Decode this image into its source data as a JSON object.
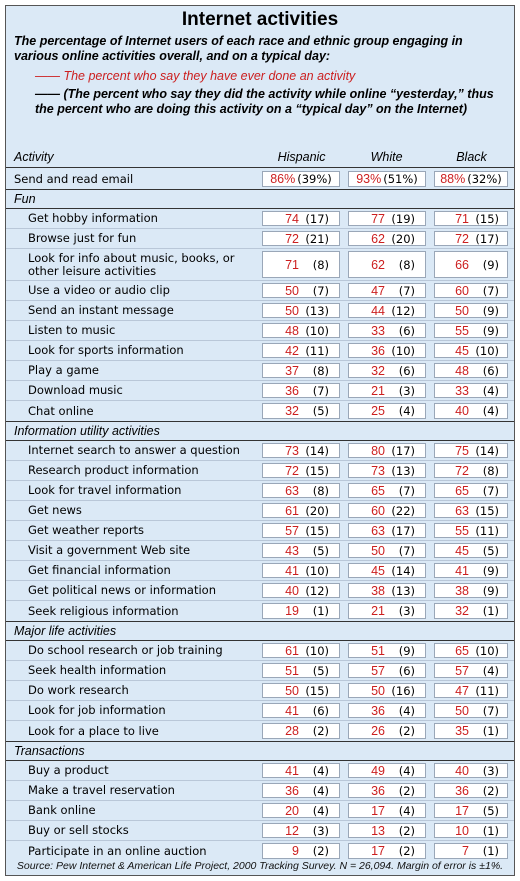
{
  "title": "Internet activities",
  "subtitle": "The percentage of Internet users of each race and ethnic group engaging in various online activities overall, and on a typical day:",
  "legend": {
    "red_line": "—— The percent who say they have ever done an activity",
    "black_line": "—— (The percent who say they did the activity while online “yesterday,” thus the percent who are doing this activity on a “typical day” on the Internet)"
  },
  "columns": {
    "activity": "Activity",
    "hispanic": "Hispanic",
    "white": "White",
    "black": "Black"
  },
  "top_row": {
    "name": "Send and read email",
    "hispanic": [
      "86%",
      "(39%)"
    ],
    "white": [
      "93%",
      "(51%)"
    ],
    "black": [
      "88%",
      "(32%)"
    ]
  },
  "sections": [
    {
      "title": "Fun",
      "rows": [
        {
          "name": "Get hobby information",
          "h": [
            "74",
            "(17)"
          ],
          "w": [
            "77",
            "(19)"
          ],
          "b": [
            "71",
            "(15)"
          ]
        },
        {
          "name": "Browse just for fun",
          "h": [
            "72",
            "(21)"
          ],
          "w": [
            "62",
            "(20)"
          ],
          "b": [
            "72",
            "(17)"
          ]
        },
        {
          "name": "Look for info about music, books, or other leisure activities",
          "tall": true,
          "h": [
            "71",
            "(8)"
          ],
          "w": [
            "62",
            "(8)"
          ],
          "b": [
            "66",
            "(9)"
          ]
        },
        {
          "name": "Use a video or audio clip",
          "h": [
            "50",
            "(7)"
          ],
          "w": [
            "47",
            "(7)"
          ],
          "b": [
            "60",
            "(7)"
          ]
        },
        {
          "name": "Send an instant message",
          "h": [
            "50",
            "(13)"
          ],
          "w": [
            "44",
            "(12)"
          ],
          "b": [
            "50",
            "(9)"
          ]
        },
        {
          "name": "Listen to music",
          "h": [
            "48",
            "(10)"
          ],
          "w": [
            "33",
            "(6)"
          ],
          "b": [
            "55",
            "(9)"
          ]
        },
        {
          "name": "Look for sports information",
          "h": [
            "42",
            "(11)"
          ],
          "w": [
            "36",
            "(10)"
          ],
          "b": [
            "45",
            "(10)"
          ]
        },
        {
          "name": "Play a game",
          "h": [
            "37",
            "(8)"
          ],
          "w": [
            "32",
            "(6)"
          ],
          "b": [
            "48",
            "(6)"
          ]
        },
        {
          "name": "Download music",
          "h": [
            "36",
            "(7)"
          ],
          "w": [
            "21",
            "(3)"
          ],
          "b": [
            "33",
            "(4)"
          ]
        },
        {
          "name": "Chat online",
          "h": [
            "32",
            "(5)"
          ],
          "w": [
            "25",
            "(4)"
          ],
          "b": [
            "40",
            "(4)"
          ]
        }
      ]
    },
    {
      "title": "Information utility activities",
      "rows": [
        {
          "name": "Internet search to answer a question",
          "h": [
            "73",
            "(14)"
          ],
          "w": [
            "80",
            "(17)"
          ],
          "b": [
            "75",
            "(14)"
          ]
        },
        {
          "name": "Research product information",
          "h": [
            "72",
            "(15)"
          ],
          "w": [
            "73",
            "(13)"
          ],
          "b": [
            "72",
            "(8)"
          ]
        },
        {
          "name": "Look for travel information",
          "h": [
            "63",
            "(8)"
          ],
          "w": [
            "65",
            "(7)"
          ],
          "b": [
            "65",
            "(7)"
          ]
        },
        {
          "name": "Get news",
          "h": [
            "61",
            "(20)"
          ],
          "w": [
            "60",
            "(22)"
          ],
          "b": [
            "63",
            "(15)"
          ]
        },
        {
          "name": "Get weather reports",
          "h": [
            "57",
            "(15)"
          ],
          "w": [
            "63",
            "(17)"
          ],
          "b": [
            "55",
            "(11)"
          ]
        },
        {
          "name": "Visit a government Web site",
          "h": [
            "43",
            "(5)"
          ],
          "w": [
            "50",
            "(7)"
          ],
          "b": [
            "45",
            "(5)"
          ]
        },
        {
          "name": "Get financial information",
          "h": [
            "41",
            "(10)"
          ],
          "w": [
            "45",
            "(14)"
          ],
          "b": [
            "41",
            "(9)"
          ]
        },
        {
          "name": "Get political news or information",
          "h": [
            "40",
            "(12)"
          ],
          "w": [
            "38",
            "(13)"
          ],
          "b": [
            "38",
            "(9)"
          ]
        },
        {
          "name": "Seek religious information",
          "h": [
            "19",
            "(1)"
          ],
          "w": [
            "21",
            "(3)"
          ],
          "b": [
            "32",
            "(1)"
          ]
        }
      ]
    },
    {
      "title": "Major life activities",
      "rows": [
        {
          "name": "Do school research or job training",
          "h": [
            "61",
            "(10)"
          ],
          "w": [
            "51",
            "(9)"
          ],
          "b": [
            "65",
            "(10)"
          ]
        },
        {
          "name": "Seek health information",
          "h": [
            "51",
            "(5)"
          ],
          "w": [
            "57",
            "(6)"
          ],
          "b": [
            "57",
            "(4)"
          ]
        },
        {
          "name": "Do work research",
          "h": [
            "50",
            "(15)"
          ],
          "w": [
            "50",
            "(16)"
          ],
          "b": [
            "47",
            "(11)"
          ]
        },
        {
          "name": "Look for job information",
          "h": [
            "41",
            "(6)"
          ],
          "w": [
            "36",
            "(4)"
          ],
          "b": [
            "50",
            "(7)"
          ]
        },
        {
          "name": "Look for a place to live",
          "h": [
            "28",
            "(2)"
          ],
          "w": [
            "26",
            "(2)"
          ],
          "b": [
            "35",
            "(1)"
          ]
        }
      ]
    },
    {
      "title": "Transactions",
      "rows": [
        {
          "name": "Buy a product",
          "h": [
            "41",
            "(4)"
          ],
          "w": [
            "49",
            "(4)"
          ],
          "b": [
            "40",
            "(3)"
          ]
        },
        {
          "name": "Make a travel reservation",
          "h": [
            "36",
            "(4)"
          ],
          "w": [
            "36",
            "(2)"
          ],
          "b": [
            "36",
            "(2)"
          ]
        },
        {
          "name": "Bank online",
          "h": [
            "20",
            "(4)"
          ],
          "w": [
            "17",
            "(4)"
          ],
          "b": [
            "17",
            "(5)"
          ]
        },
        {
          "name": "Buy or sell stocks",
          "h": [
            "12",
            "(3)"
          ],
          "w": [
            "13",
            "(2)"
          ],
          "b": [
            "10",
            "(1)"
          ]
        },
        {
          "name": "Participate in an online auction",
          "h": [
            "9",
            "(2)"
          ],
          "w": [
            "17",
            "(2)"
          ],
          "b": [
            "7",
            "(1)"
          ]
        }
      ]
    }
  ],
  "source": "Source: Pew Internet & American Life Project, 2000 Tracking Survey. N = 26,094. Margin of error is ±1%.",
  "colors": {
    "background": "#dbe9f6",
    "ever_done": "#cc1f1f",
    "cell": "#ffffff"
  }
}
